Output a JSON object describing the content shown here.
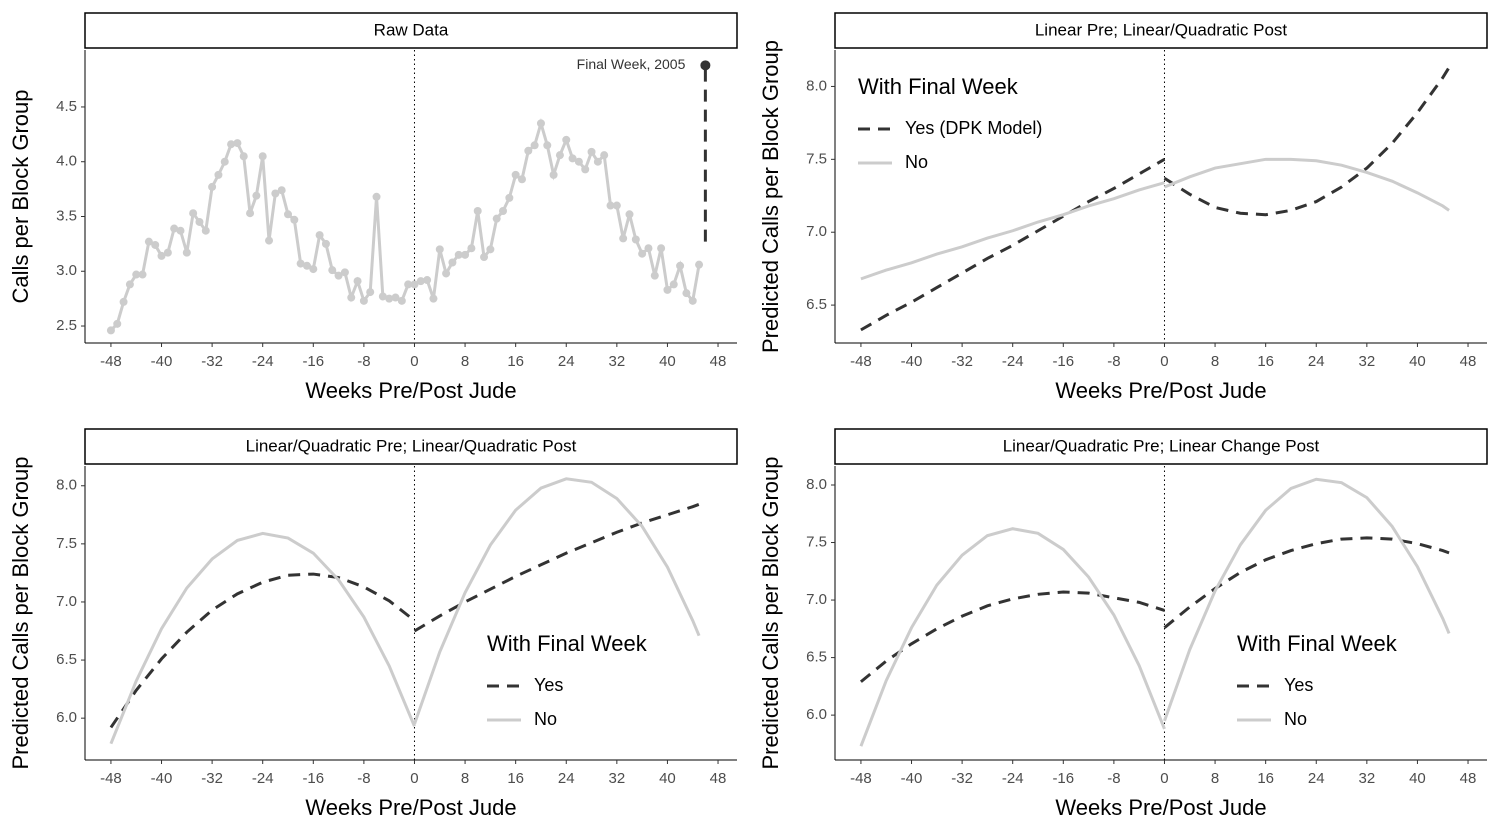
{
  "chart_data": [
    {
      "type": "line",
      "strip": "Raw Data",
      "x_label": "Weeks Pre/Post Jude",
      "y_label": "Calls per Block Group",
      "x": [
        -48,
        -47,
        -46,
        -45,
        -44,
        -43,
        -42,
        -41,
        -40,
        -39,
        -38,
        -37,
        -36,
        -35,
        -34,
        -33,
        -32,
        -31,
        -30,
        -29,
        -28,
        -27,
        -26,
        -25,
        -24,
        -23,
        -22,
        -21,
        -20,
        -19,
        -18,
        -17,
        -16,
        -15,
        -14,
        -13,
        -12,
        -11,
        -10,
        -9,
        -8,
        -7,
        -6,
        -5,
        -4,
        -3,
        -2,
        -1,
        0,
        1,
        2,
        3,
        4,
        5,
        6,
        7,
        8,
        9,
        10,
        11,
        12,
        13,
        14,
        15,
        16,
        17,
        18,
        19,
        20,
        21,
        22,
        23,
        24,
        25,
        26,
        27,
        28,
        29,
        30,
        31,
        32,
        33,
        34,
        35,
        36,
        37,
        38,
        39,
        40,
        41,
        42,
        43,
        44,
        45
      ],
      "series": [
        {
          "color": "#cccccc",
          "values": [
            2.46,
            2.52,
            2.72,
            2.88,
            2.97,
            2.97,
            3.27,
            3.24,
            3.14,
            3.17,
            3.39,
            3.37,
            3.17,
            3.53,
            3.45,
            3.37,
            3.77,
            3.88,
            4.0,
            4.16,
            4.17,
            4.05,
            3.53,
            3.69,
            4.05,
            3.28,
            3.71,
            3.74,
            3.52,
            3.47,
            3.07,
            3.05,
            3.02,
            3.33,
            3.25,
            3.01,
            2.96,
            2.99,
            2.76,
            2.91,
            2.73,
            2.81,
            3.68,
            2.77,
            2.75,
            2.76,
            2.73,
            2.88,
            2.88,
            2.91,
            2.92,
            2.75,
            3.2,
            2.98,
            3.08,
            3.15,
            3.15,
            3.21,
            3.55,
            3.13,
            3.2,
            3.48,
            3.55,
            3.67,
            3.88,
            3.84,
            4.1,
            4.15,
            4.35,
            4.15,
            3.88,
            4.06,
            4.2,
            4.03,
            4.0,
            3.93,
            4.09,
            4.0,
            4.06,
            3.6,
            3.6,
            3.3,
            3.52,
            3.29,
            3.16,
            3.21,
            2.96,
            3.21,
            2.83,
            2.88,
            3.05,
            2.8,
            2.73,
            3.06
          ]
        }
      ],
      "markers": true,
      "highlight": {
        "label": "Final Week, 2005",
        "x": 46,
        "value": 4.88,
        "from_value": 3.27,
        "color": "#333333"
      },
      "xlim": [
        -52.1,
        51.0
      ],
      "xticks": [
        -48,
        -40,
        -32,
        -24,
        -16,
        -8,
        0,
        8,
        16,
        24,
        32,
        40,
        48
      ],
      "ylim": [
        2.345,
        5.02
      ],
      "yticks": [
        2.5,
        {
          "value": 3,
          "label": "3.0"
        },
        3.5,
        {
          "value": 4,
          "label": "4.0"
        },
        4.5
      ],
      "vline": 0
    },
    {
      "type": "line",
      "strip": "Linear Pre; Linear/Quadratic Post",
      "x_label": "Weeks Pre/Post Jude",
      "y_label": "Predicted Calls per Block Group",
      "legend_title": "With Final Week",
      "legend": "top-left",
      "x": [
        -48,
        -44,
        -40,
        -36,
        -32,
        -28,
        -24,
        -20,
        -16,
        -12,
        -8,
        -4,
        0,
        null,
        0,
        4,
        8,
        12,
        16,
        20,
        24,
        28,
        32,
        36,
        40,
        44,
        45
      ],
      "series": [
        {
          "name": "Yes (DPK Model)",
          "color": "#333333",
          "dashed": true,
          "values": [
            6.33,
            6.43,
            6.52,
            6.62,
            6.72,
            6.82,
            6.91,
            7.01,
            7.11,
            7.21,
            7.3,
            7.4,
            7.5,
            null,
            7.37,
            7.26,
            7.17,
            7.13,
            7.12,
            7.15,
            7.21,
            7.31,
            7.44,
            7.61,
            7.82,
            8.06,
            8.13
          ]
        },
        {
          "name": "No",
          "color": "#cccccc",
          "dashed": false,
          "values": [
            6.68,
            6.74,
            6.79,
            6.85,
            6.9,
            6.96,
            7.01,
            7.07,
            7.12,
            7.18,
            7.23,
            7.29,
            7.34,
            null,
            7.31,
            7.38,
            7.44,
            7.47,
            7.5,
            7.5,
            7.49,
            7.46,
            7.41,
            7.35,
            7.27,
            7.18,
            7.15
          ]
        }
      ],
      "xlim": [
        -52.1,
        51.0
      ],
      "xticks": [
        -48,
        -40,
        -32,
        -24,
        -16,
        -8,
        0,
        8,
        16,
        24,
        32,
        40,
        48
      ],
      "ylim": [
        6.24,
        8.25
      ],
      "yticks": [
        6.5,
        {
          "value": 7,
          "label": "7.0"
        },
        7.5,
        {
          "value": 8,
          "label": "8.0"
        }
      ],
      "vline": 0
    },
    {
      "type": "line",
      "strip": "Linear/Quadratic Pre; Linear/Quadratic Post",
      "x_label": "Weeks Pre/Post Jude",
      "y_label": "Predicted Calls per Block Group",
      "legend_title": "With Final Week",
      "legend": "bottom-right",
      "x": [
        -48,
        -44,
        -40,
        -36,
        -32,
        -28,
        -24,
        -20,
        -16,
        -12,
        -8,
        -4,
        0,
        null,
        0,
        4,
        8,
        12,
        16,
        20,
        24,
        28,
        32,
        36,
        40,
        44,
        45
      ],
      "series": [
        {
          "name": "Yes",
          "color": "#333333",
          "dashed": true,
          "values": [
            5.92,
            6.24,
            6.51,
            6.74,
            6.93,
            7.07,
            7.17,
            7.23,
            7.24,
            7.21,
            7.13,
            7.01,
            6.84,
            null,
            6.75,
            6.88,
            7.0,
            7.11,
            7.22,
            7.32,
            7.42,
            7.51,
            7.6,
            7.68,
            7.75,
            7.82,
            7.84
          ]
        },
        {
          "name": "No",
          "color": "#cccccc",
          "dashed": false,
          "values": [
            5.78,
            6.32,
            6.77,
            7.12,
            7.37,
            7.53,
            7.59,
            7.55,
            7.42,
            7.19,
            6.87,
            6.45,
            5.93,
            null,
            5.95,
            6.57,
            7.08,
            7.49,
            7.79,
            7.98,
            8.06,
            8.03,
            7.89,
            7.65,
            7.3,
            6.84,
            6.71
          ]
        }
      ],
      "xlim": [
        -52.1,
        51.0
      ],
      "xticks": [
        -48,
        -40,
        -32,
        -24,
        -16,
        -8,
        0,
        8,
        16,
        24,
        32,
        40,
        48
      ],
      "ylim": [
        5.64,
        8.17
      ],
      "yticks": [
        {
          "value": 6,
          "label": "6.0"
        },
        6.5,
        {
          "value": 7,
          "label": "7.0"
        },
        7.5,
        {
          "value": 8,
          "label": "8.0"
        }
      ],
      "vline": 0
    },
    {
      "type": "line",
      "strip": "Linear/Quadratic Pre; Linear Change Post",
      "x_label": "Weeks Pre/Post Jude",
      "y_label": "Predicted Calls per Block Group",
      "legend_title": "With Final Week",
      "legend": "bottom-right",
      "x": [
        -48,
        -44,
        -40,
        -36,
        -32,
        -28,
        -24,
        -20,
        -16,
        -12,
        -8,
        -4,
        0,
        null,
        0,
        4,
        8,
        12,
        16,
        20,
        24,
        28,
        32,
        36,
        40,
        44,
        45
      ],
      "series": [
        {
          "name": "Yes",
          "color": "#333333",
          "dashed": true,
          "values": [
            6.29,
            6.47,
            6.62,
            6.75,
            6.86,
            6.95,
            7.01,
            7.05,
            7.07,
            7.06,
            7.02,
            6.98,
            6.91,
            null,
            6.76,
            6.94,
            7.1,
            7.24,
            7.35,
            7.43,
            7.49,
            7.53,
            7.54,
            7.53,
            7.49,
            7.43,
            7.41
          ]
        },
        {
          "name": "No",
          "color": "#cccccc",
          "dashed": false,
          "values": [
            5.73,
            6.3,
            6.76,
            7.13,
            7.39,
            7.56,
            7.62,
            7.58,
            7.44,
            7.2,
            6.87,
            6.43,
            5.88,
            null,
            5.95,
            6.57,
            7.08,
            7.48,
            7.78,
            7.97,
            8.05,
            8.02,
            7.89,
            7.64,
            7.29,
            6.84,
            6.71
          ]
        }
      ],
      "xlim": [
        -52.1,
        51.0
      ],
      "xticks": [
        -48,
        -40,
        -32,
        -24,
        -16,
        -8,
        0,
        8,
        16,
        24,
        32,
        40,
        48
      ],
      "ylim": [
        5.61,
        8.165
      ],
      "yticks": [
        {
          "value": 6,
          "label": "6.0"
        },
        6.5,
        {
          "value": 7,
          "label": "7.0"
        },
        7.5,
        {
          "value": 8,
          "label": "8.0"
        }
      ],
      "vline": 0
    }
  ]
}
